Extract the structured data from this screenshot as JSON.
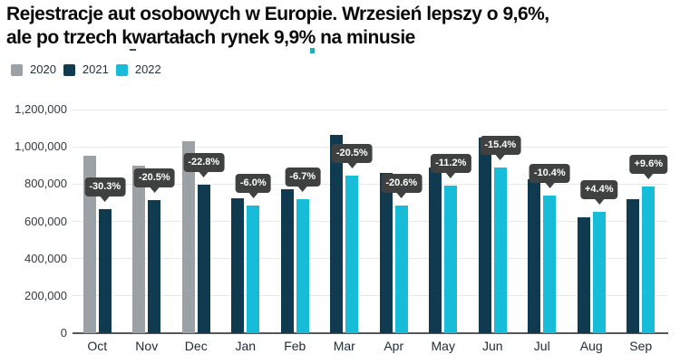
{
  "title": {
    "line1": "Rejestracje aut osobowych w Europie. Wrzesień lepszy o 9,6%,",
    "line2": "ale po trzech kwartałach rynek 9,9% na minusie"
  },
  "legend": {
    "items": [
      {
        "label": "2020",
        "color": "#9ca1a5"
      },
      {
        "label": "2021",
        "color": "#0f3a50"
      },
      {
        "label": "2022",
        "color": "#17bdd8"
      }
    ]
  },
  "colors": {
    "background": "#ffffff",
    "title_text": "#0a0a0a",
    "axis_text": "#343a40",
    "month_text": "#1d2a36",
    "gridline": "#e6e8ea",
    "axis_line": "#54585c",
    "tooltip_bg": "#3f4040",
    "tooltip_text": "#ffffff",
    "series_2020": "#9ca1a5",
    "series_2021": "#0f3a50",
    "series_2022": "#17bdd8"
  },
  "chart_data": {
    "type": "bar",
    "title": "Rejestracje aut osobowych w Europie. Wrzesień lepszy o 9,6%, ale po trzech kwartałach rynek 9,9% na minusie",
    "categories": [
      "Oct",
      "Nov",
      "Dec",
      "Jan",
      "Feb",
      "Mar",
      "Apr",
      "May",
      "Jun",
      "Jul",
      "Aug",
      "Sep"
    ],
    "series": [
      {
        "name": "2020",
        "color": "#9ca1a5",
        "values": [
          953000,
          898000,
          1031000,
          null,
          null,
          null,
          null,
          null,
          null,
          null,
          null,
          null
        ]
      },
      {
        "name": "2021",
        "color": "#0f3a50",
        "values": [
          665000,
          713000,
          795000,
          726000,
          771000,
          1062000,
          862000,
          891000,
          1048000,
          824000,
          623000,
          718000
        ]
      },
      {
        "name": "2022",
        "color": "#17bdd8",
        "values": [
          null,
          null,
          null,
          683000,
          719000,
          844000,
          685000,
          792000,
          887000,
          738000,
          650000,
          787000
        ]
      }
    ],
    "change_labels": [
      "-30.3%",
      "-20.5%",
      "-22.8%",
      "-6.0%",
      "-6.7%",
      "-20.5%",
      "-20.6%",
      "-11.2%",
      "-15.4%",
      "-10.4%",
      "+4.4%",
      "+9.6%"
    ],
    "xlabel": "",
    "ylabel": "",
    "ylim": [
      0,
      1200000
    ],
    "yticks": [
      0,
      200000,
      400000,
      600000,
      800000,
      1000000,
      1200000
    ],
    "ytick_labels": [
      "0",
      "200,000",
      "400,000",
      "600,000",
      "800,000",
      "1,000,000",
      "1,200,000"
    ],
    "grid": true,
    "legend_position": "top-left"
  }
}
